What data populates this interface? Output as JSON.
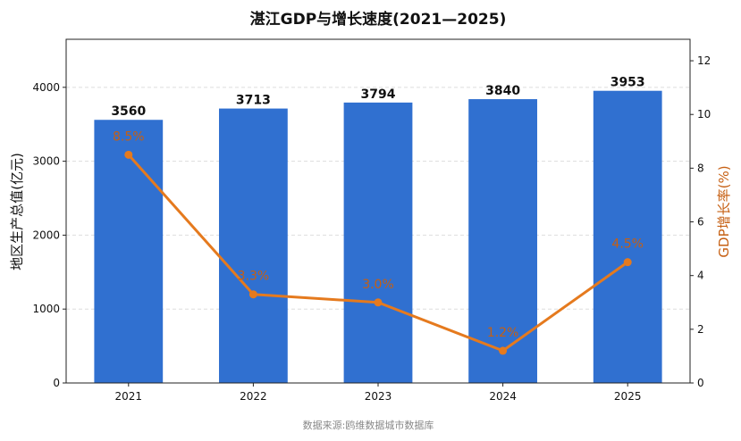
{
  "chart_data": {
    "type": "bar",
    "title": "湛江GDP与增长速度(2021—2025)",
    "categories": [
      "2021",
      "2022",
      "2023",
      "2024",
      "2025"
    ],
    "series": [
      {
        "type": "bar",
        "axis": "left",
        "values": [
          3560,
          3713,
          3794,
          3840,
          3953
        ],
        "labels": [
          "3560",
          "3713",
          "3794",
          "3840",
          "3953"
        ],
        "color": "#3070d0"
      },
      {
        "type": "line",
        "axis": "right",
        "values": [
          8.5,
          3.3,
          3.0,
          1.2,
          4.5
        ],
        "labels": [
          "8.5%",
          "3.3%",
          "3.0%",
          "1.2%",
          "4.5%"
        ],
        "color": "#e57a1e"
      }
    ],
    "ylabel": "地区生产总值(亿元)",
    "y2label": "GDP增长率(%)",
    "ylim": [
      0,
      4650
    ],
    "y2lim": [
      0,
      12.8
    ],
    "yticks": [
      "0",
      "1000",
      "2000",
      "3000",
      "4000"
    ],
    "y2ticks": [
      "0",
      "2",
      "4",
      "6",
      "8",
      "10",
      "12"
    ],
    "grid": "horizontal dashed",
    "source": "数据来源:鸥维数据城市数据库",
    "colors": {
      "bar": "#3070d0",
      "line": "#e57a1e",
      "line_label": "#c65f12",
      "y2_label": "#c65f12",
      "grid": "#dddddd"
    }
  }
}
